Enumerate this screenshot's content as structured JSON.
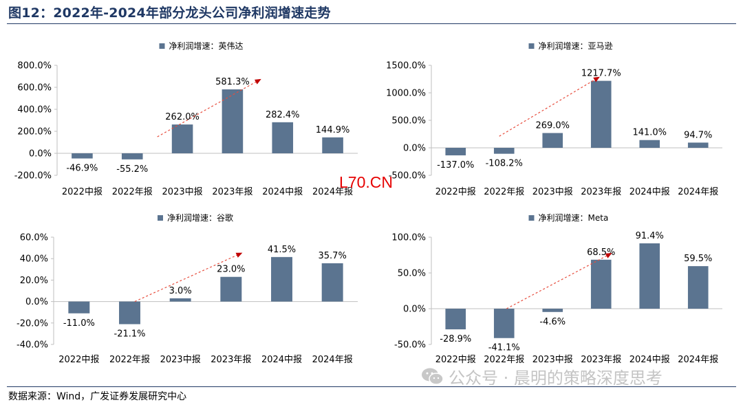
{
  "page": {
    "title": "图12：2022年-2024年部分龙头公司净利润增速走势",
    "source": "数据来源：Wind，广发证券发展研究中心",
    "watermark_site": "L70.CN",
    "watermark_wechat": "公众号 · 晨明的策略深度思考",
    "wechat_icon": "wechat-logo"
  },
  "colors": {
    "bar": "#5b7490",
    "title": "#1f3864",
    "trend_line": "#e74c3c",
    "trend_arrow": "#c00000",
    "watermark_site": "#e60000",
    "watermark_wechat": "#c4c4c4"
  },
  "chart_data": [
    {
      "type": "bar",
      "legend": "净利润增速：英伟达",
      "categories": [
        "2022中报",
        "2022年报",
        "2023中报",
        "2023年报",
        "2024中报",
        "2024年报"
      ],
      "values": [
        -46.9,
        -55.2,
        262.0,
        581.3,
        282.4,
        144.9
      ],
      "labels": [
        "-46.9%",
        "-55.2%",
        "262.0%",
        "581.3%",
        "282.4%",
        "144.9%"
      ],
      "ylim": [
        -200,
        800
      ],
      "yticks": [
        800,
        600,
        400,
        200,
        0,
        -200
      ],
      "ytick_labels": [
        "800.0%",
        "600.0%",
        "400.0%",
        "200.0%",
        "0.0%",
        "-200.0%"
      ],
      "legend_position": "top",
      "trend_arrow": {
        "from": [
          1.5,
          150
        ],
        "to": [
          3.55,
          670
        ]
      }
    },
    {
      "type": "bar",
      "legend": "净利润增速：亚马逊",
      "categories": [
        "2022中报",
        "2022年报",
        "2023中报",
        "2023年报",
        "2024中报",
        "2024年报"
      ],
      "values": [
        -137.0,
        -108.2,
        269.0,
        1217.7,
        141.0,
        94.7
      ],
      "labels": [
        "-137.0%",
        "-108.2%",
        "269.0%",
        "1217.7%",
        "141.0%",
        "94.7%"
      ],
      "ylim": [
        -500,
        1500
      ],
      "yticks": [
        1500,
        1000,
        500,
        0,
        -500
      ],
      "ytick_labels": [
        "1500.0%",
        "1000.0%",
        "500.0%",
        "0.0%",
        "-500.0%"
      ],
      "legend_position": "top",
      "trend_arrow": {
        "from": [
          0.9,
          210
        ],
        "to": [
          2.95,
          1280
        ]
      }
    },
    {
      "type": "bar",
      "legend": "净利润增速：谷歌",
      "categories": [
        "2022中报",
        "2022年报",
        "2023中报",
        "2023年报",
        "2024中报",
        "2024年报"
      ],
      "values": [
        -11.0,
        -21.1,
        3.0,
        23.0,
        41.5,
        35.7
      ],
      "labels": [
        "-11.0%",
        "-21.1%",
        "3.0%",
        "23.0%",
        "41.5%",
        "35.7%"
      ],
      "ylim": [
        -40,
        60
      ],
      "yticks": [
        60,
        40,
        20,
        0,
        -20,
        -40
      ],
      "ytick_labels": [
        "60.0%",
        "40.0%",
        "20.0%",
        "0.0%",
        "-20.0%",
        "-40.0%"
      ],
      "legend_position": "top",
      "trend_arrow": {
        "from": [
          1.1,
          0
        ],
        "to": [
          3.2,
          45
        ]
      }
    },
    {
      "type": "bar",
      "legend": "净利润增速：Meta",
      "categories": [
        "2022中报",
        "2022年报",
        "2023中报",
        "2023年报",
        "2024中报",
        "2024年报"
      ],
      "values": [
        -28.9,
        -41.1,
        -4.6,
        68.5,
        91.4,
        59.5
      ],
      "labels": [
        "-28.9%",
        "-41.1%",
        "-4.6%",
        "68.5%",
        "91.4%",
        "59.5%"
      ],
      "ylim": [
        -50,
        100
      ],
      "yticks": [
        100,
        50,
        0,
        -50
      ],
      "ytick_labels": [
        "100.0%",
        "50.0%",
        "0.0%",
        "-50.0%"
      ],
      "legend_position": "top",
      "trend_arrow": {
        "from": [
          1.05,
          0
        ],
        "to": [
          3.2,
          77
        ]
      }
    }
  ]
}
